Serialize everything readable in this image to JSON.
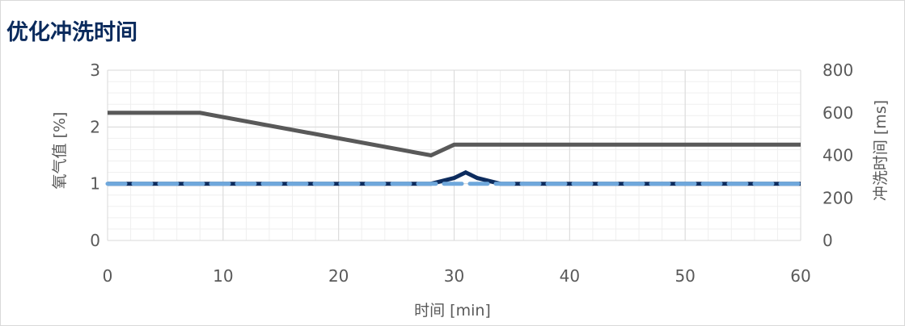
{
  "title": "优化冲洗时间",
  "chart_data": {
    "type": "line",
    "title": "优化冲洗时间",
    "xlabel": "时间 [min]",
    "ylabel_left": "氧气值 [%]",
    "ylabel_right": "冲洗时间 [ms]",
    "xlim": [
      0,
      60
    ],
    "ylim_left": [
      0,
      3
    ],
    "ylim_right": [
      0,
      800
    ],
    "x_ticks": [
      "0",
      "10",
      "20",
      "30",
      "40",
      "50",
      "60"
    ],
    "y_ticks_left": [
      "0",
      "1",
      "2",
      "3"
    ],
    "y_ticks_right": [
      "0",
      "200",
      "400",
      "600",
      "800"
    ],
    "grid": true,
    "legend": "none",
    "series": [
      {
        "axis": "right",
        "color": "#595959",
        "style": "solid",
        "x": [
          0,
          8,
          28,
          30,
          60
        ],
        "y": [
          600,
          600,
          400,
          450,
          450
        ]
      },
      {
        "axis": "left",
        "color": "#0d2c5e",
        "style": "solid",
        "x": [
          0,
          28,
          30,
          31,
          32,
          34,
          60
        ],
        "y": [
          1.0,
          1.0,
          1.1,
          1.2,
          1.1,
          1.0,
          1.0
        ]
      },
      {
        "axis": "left",
        "color": "#6fa8dc",
        "style": "dashed",
        "x": [
          0,
          60
        ],
        "y": [
          1.0,
          1.0
        ]
      }
    ]
  }
}
